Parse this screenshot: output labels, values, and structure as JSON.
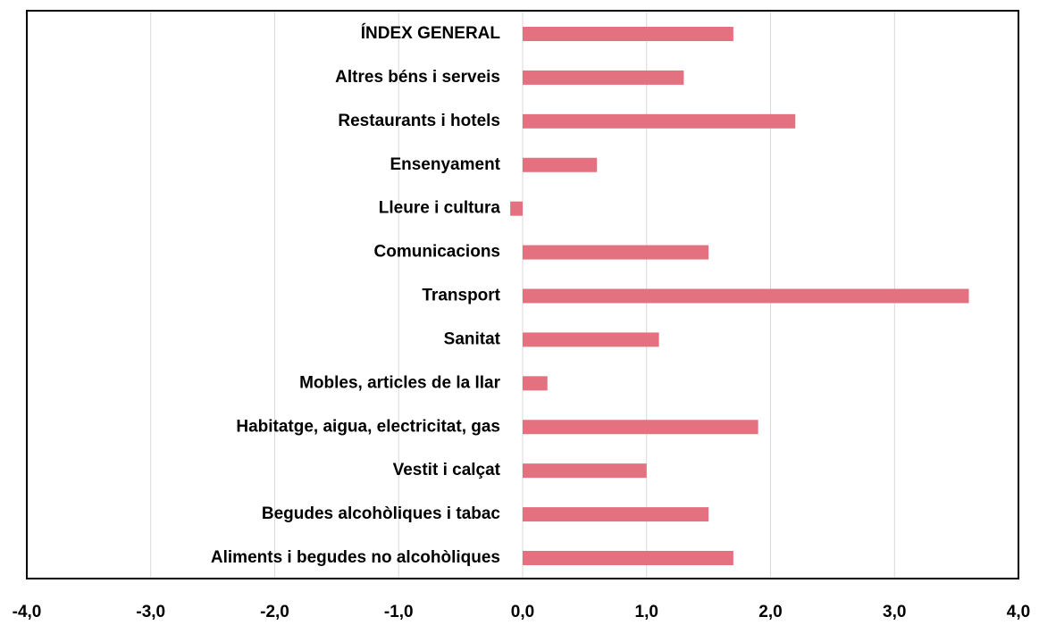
{
  "chart_data": {
    "type": "bar",
    "orientation": "horizontal",
    "categories": [
      "ÍNDEX GENERAL",
      "Altres béns i serveis",
      "Restaurants i hotels",
      "Ensenyament",
      "Lleure i cultura",
      "Comunicacions",
      "Transport",
      "Sanitat",
      "Mobles, articles de la llar",
      "Habitatge, aigua, electricitat, gas",
      "Vestit i calçat",
      "Begudes alcohòliques i tabac",
      "Aliments i begudes no alcohòliques"
    ],
    "values": [
      1.7,
      1.3,
      2.2,
      0.6,
      -0.1,
      1.5,
      3.6,
      1.1,
      0.2,
      1.9,
      1.0,
      1.5,
      1.7
    ],
    "color": "#e4717f",
    "xlim": [
      -4,
      4
    ],
    "xticks": [
      {
        "value": -4,
        "label": "-4,0"
      },
      {
        "value": -3,
        "label": "-3,0"
      },
      {
        "value": -2,
        "label": "-2,0"
      },
      {
        "value": -1,
        "label": "-1,0"
      },
      {
        "value": 0,
        "label": "0,0"
      },
      {
        "value": 1,
        "label": "1,0"
      },
      {
        "value": 2,
        "label": "2,0"
      },
      {
        "value": 3,
        "label": "3,0"
      },
      {
        "value": 4,
        "label": "4,0"
      }
    ],
    "grid": true
  }
}
